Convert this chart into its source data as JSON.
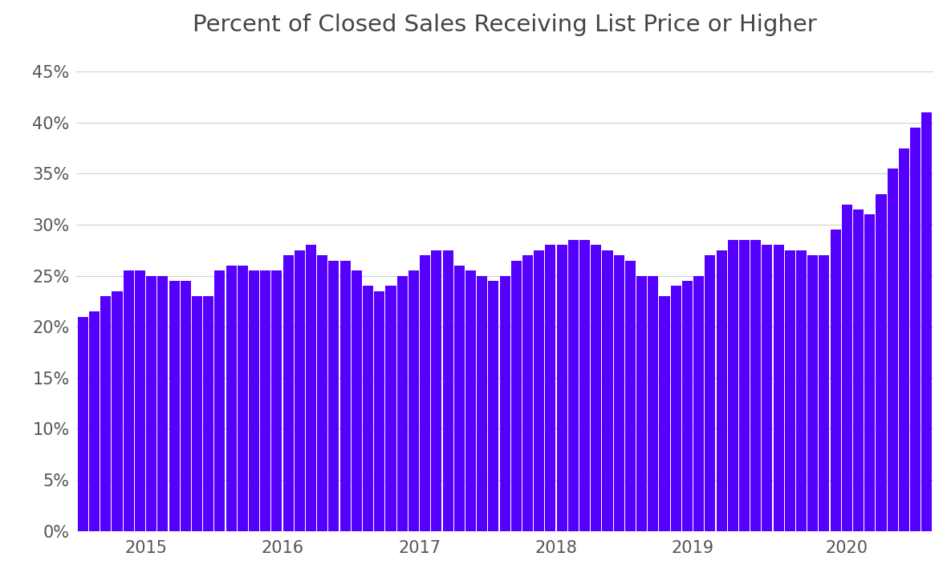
{
  "title": "Percent of Closed Sales Receiving List Price or Higher",
  "bar_color": "#5500FF",
  "background_color": "#ffffff",
  "values": [
    21.0,
    21.5,
    23.0,
    23.5,
    25.5,
    25.5,
    25.0,
    25.0,
    24.5,
    24.5,
    23.0,
    23.0,
    25.5,
    26.0,
    26.0,
    25.5,
    25.5,
    25.5,
    27.0,
    27.5,
    28.0,
    27.0,
    26.5,
    26.5,
    25.5,
    24.0,
    23.5,
    24.0,
    25.0,
    25.5,
    27.0,
    27.5,
    27.5,
    26.0,
    25.5,
    25.0,
    24.5,
    25.0,
    26.5,
    27.0,
    27.5,
    28.0,
    28.0,
    28.5,
    28.5,
    28.0,
    27.5,
    27.0,
    26.5,
    25.0,
    25.0,
    23.0,
    24.0,
    24.5,
    25.0,
    27.0,
    27.5,
    28.5,
    28.5,
    28.5,
    28.0,
    28.0,
    27.5,
    27.5,
    27.0,
    27.0,
    29.5,
    32.0,
    31.5,
    31.0,
    33.0,
    35.5,
    37.5,
    39.5,
    41.0
  ],
  "year_labels": [
    "2015",
    "2016",
    "2017",
    "2018",
    "2019",
    "2020"
  ],
  "year_starts": [
    0,
    12,
    24,
    36,
    48,
    60
  ],
  "year_months": [
    12,
    12,
    12,
    12,
    12,
    15
  ],
  "yticks": [
    0,
    5,
    10,
    15,
    20,
    25,
    30,
    35,
    40,
    45
  ],
  "ylim": [
    0,
    47
  ],
  "grid_color": "#d0d0d0",
  "title_fontsize": 21,
  "tick_fontsize": 15,
  "tick_color": "#555555",
  "title_color": "#444444"
}
